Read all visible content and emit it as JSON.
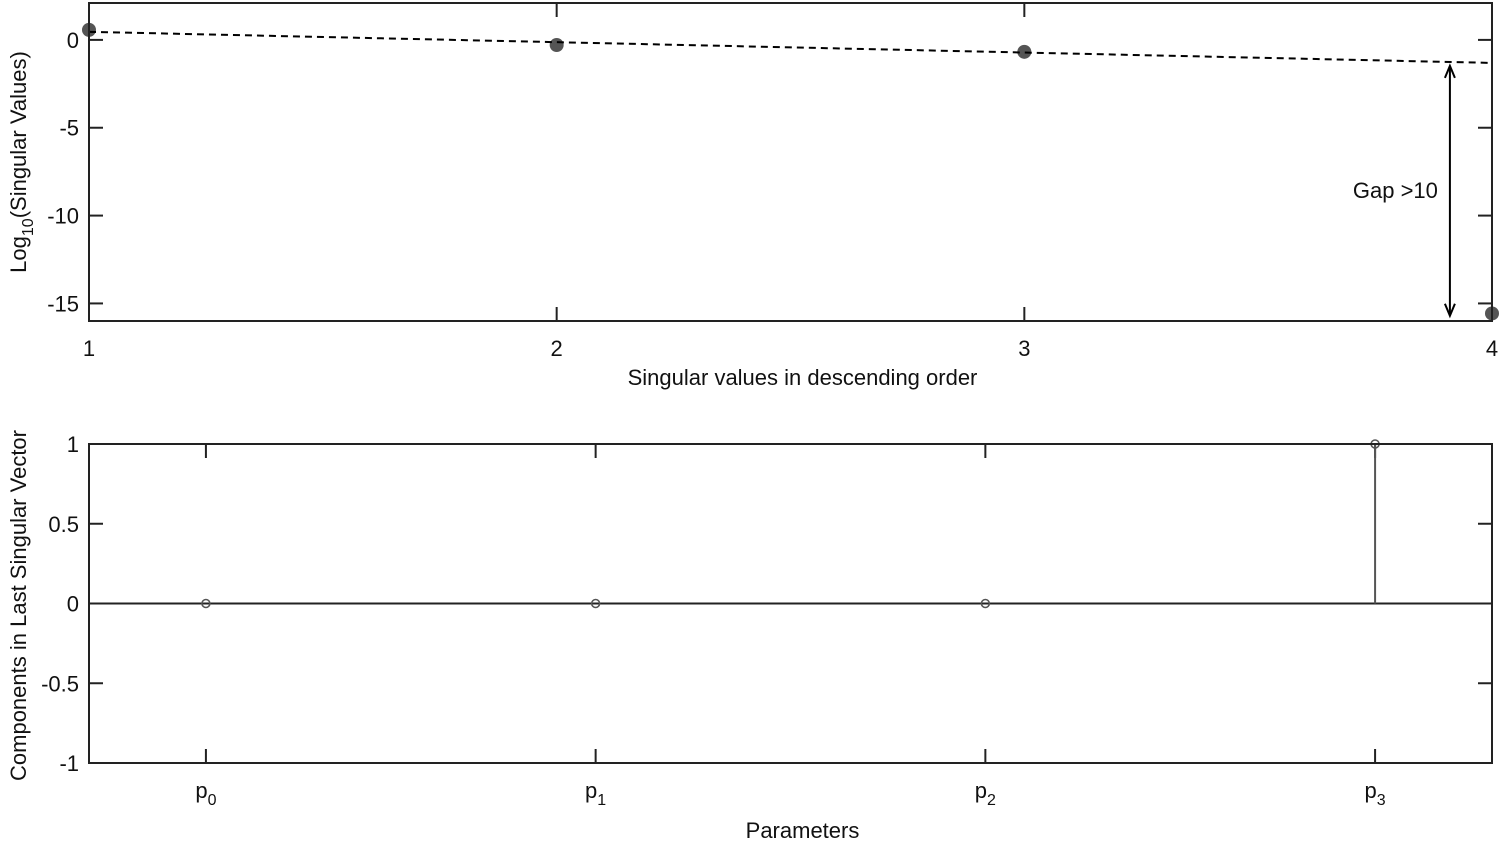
{
  "chart_data": [
    {
      "type": "scatter",
      "ylabel": [
        "Log",
        "10",
        "(Singular Values)"
      ],
      "xlabel": "Singular values in descending order",
      "x": [
        1,
        2,
        3,
        4
      ],
      "xlim": [
        1,
        4
      ],
      "ylim": [
        -16,
        2.1
      ],
      "xticks": [
        1,
        2,
        3,
        4
      ],
      "yticks": [
        -15,
        -10,
        -5,
        0
      ],
      "series": [
        {
          "style": "markers",
          "color": "#555555",
          "x": [
            1,
            2,
            3,
            4
          ],
          "values": [
            0.57,
            -0.29,
            -0.68,
            -15.57
          ]
        },
        {
          "style": "dashed",
          "color": "#000000",
          "x": [
            1,
            4
          ],
          "values": [
            0.46,
            -1.31
          ]
        }
      ],
      "annotation": {
        "text": "Gap >10",
        "x": 3.91,
        "y_from": -1.48,
        "y_to": -15.7
      }
    },
    {
      "type": "stem",
      "ylabel": [
        "Components in Last Singular Vector"
      ],
      "xlabel": "Parameters",
      "x": [
        1,
        2,
        3,
        4
      ],
      "xlim": [
        0.7,
        4.3
      ],
      "ylim": [
        -1,
        1
      ],
      "xticks": [
        {
          "value": 1,
          "label": "p",
          "sub": "0"
        },
        {
          "value": 2,
          "label": "p",
          "sub": "1"
        },
        {
          "value": 3,
          "label": "p",
          "sub": "2"
        },
        {
          "value": 4,
          "label": "p",
          "sub": "3"
        }
      ],
      "yticks": [
        -1,
        -0.5,
        0,
        0.5,
        1
      ],
      "series": [
        {
          "style": "stem",
          "color": "#555555",
          "x": [
            1,
            2,
            3,
            4
          ],
          "values": [
            0,
            0,
            0,
            1
          ]
        }
      ]
    }
  ]
}
